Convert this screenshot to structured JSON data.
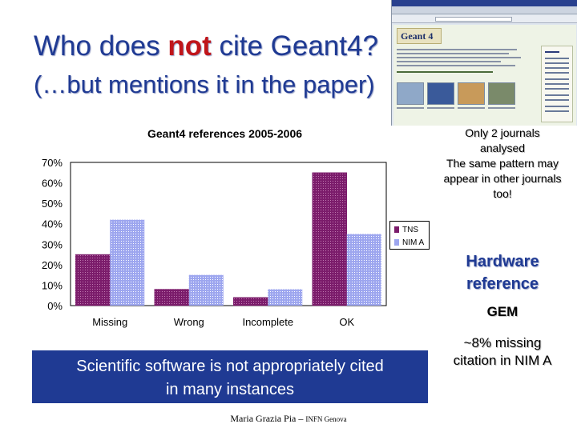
{
  "slide": {
    "title_prefix": "Who does ",
    "title_highlight": "not",
    "title_suffix": " cite Geant4?",
    "subtitle": "(…but mentions it in the paper)"
  },
  "screenshot": {
    "logo_text": "Geant 4"
  },
  "chart_data": {
    "type": "bar",
    "title": "Geant4 references 2005-2006",
    "categories": [
      "Missing",
      "Wrong",
      "Incomplete",
      "OK"
    ],
    "series": [
      {
        "name": "TNS",
        "values": [
          25,
          8,
          4,
          65
        ],
        "color": "#7b1c6b"
      },
      {
        "name": "NIM A",
        "values": [
          42,
          15,
          8,
          35
        ],
        "color": "#9da6ef"
      }
    ],
    "ylim": [
      0,
      70
    ],
    "yticks": [
      "0%",
      "10%",
      "20%",
      "30%",
      "40%",
      "50%",
      "60%",
      "70%"
    ],
    "grid": false,
    "legend_position": "right"
  },
  "notes": {
    "journals_line1": "Only 2 journals",
    "journals_line2": "analysed",
    "journals_line3": "The same pattern may",
    "journals_line4": "appear in other journals",
    "journals_line5": "too!",
    "hardware_line1": "Hardware",
    "hardware_line2": "reference",
    "gem": "GEM",
    "missing_line1": "~8% missing",
    "missing_line2": "citation in NIM A"
  },
  "banner": {
    "line1": "Scientific software is not appropriately cited",
    "line2": "in many instances"
  },
  "footer": {
    "name": "Maria Grazia Pia – ",
    "affiliation": "INFN Genova"
  }
}
